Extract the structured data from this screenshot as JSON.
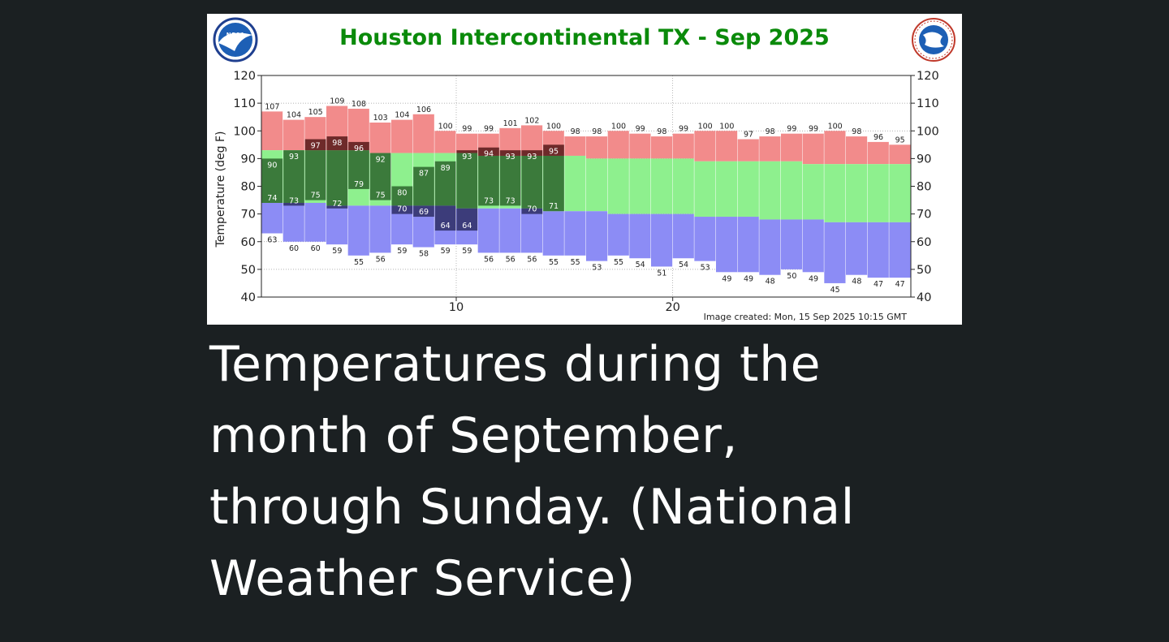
{
  "caption": "Temperatures during the month of September, through Sunday. (National Weather Service)",
  "logos": {
    "left": "noaa-logo",
    "left_text": "NOAA",
    "right": "nws-logo",
    "right_text": "NATIONAL WEATHER SERVICE"
  },
  "chart_data": {
    "type": "bar",
    "title": "Houston Intercontinental TX - Sep 2025",
    "ylabel": "Temperature (deg F)",
    "xlabel": "",
    "ylim": [
      40,
      120
    ],
    "yticks": [
      40,
      50,
      60,
      70,
      80,
      90,
      100,
      110,
      120
    ],
    "xticks": [
      10,
      20
    ],
    "xlim": [
      1,
      31
    ],
    "grid": true,
    "note": "Image created: Mon, 15 Sep 2025 10:15 GMT",
    "colors": {
      "record_range": "#f28b8b",
      "normal_range": "#8ef08e",
      "record_low_range": "#8c8cf5",
      "observed": "#3b7a3b",
      "observed_above_record": "#6e2a2a",
      "observed_below_record": "#3c3c7a"
    },
    "days": [
      1,
      2,
      3,
      4,
      5,
      6,
      7,
      8,
      9,
      10,
      11,
      12,
      13,
      14,
      15,
      16,
      17,
      18,
      19,
      20,
      21,
      22,
      23,
      24,
      25,
      26,
      27,
      28,
      29,
      30
    ],
    "record_high": [
      107,
      104,
      105,
      109,
      108,
      103,
      104,
      106,
      100,
      99,
      99,
      101,
      102,
      100,
      98,
      98,
      100,
      99,
      98,
      99,
      100,
      100,
      97,
      98,
      99,
      99,
      100,
      98,
      96,
      95
    ],
    "normal_high": [
      93,
      93,
      93,
      93,
      93,
      92,
      92,
      92,
      92,
      92,
      91,
      91,
      91,
      91,
      91,
      90,
      90,
      90,
      90,
      90,
      89,
      89,
      89,
      89,
      89,
      88,
      88,
      88,
      88,
      88
    ],
    "normal_low": [
      74,
      74,
      74,
      73,
      73,
      73,
      73,
      73,
      73,
      72,
      72,
      72,
      72,
      71,
      71,
      71,
      70,
      70,
      70,
      70,
      69,
      69,
      69,
      68,
      68,
      68,
      67,
      67,
      67,
      67
    ],
    "record_low": [
      63,
      60,
      60,
      59,
      55,
      56,
      59,
      58,
      59,
      59,
      56,
      56,
      56,
      55,
      55,
      53,
      55,
      54,
      51,
      54,
      53,
      49,
      49,
      48,
      50,
      49,
      45,
      48,
      47,
      47
    ],
    "observed_high": [
      90,
      93,
      97,
      98,
      96,
      92,
      80,
      87,
      89,
      93,
      94,
      93,
      93,
      95
    ],
    "observed_low": [
      74,
      73,
      75,
      72,
      79,
      75,
      70,
      69,
      64,
      64,
      73,
      73,
      70,
      71
    ]
  }
}
